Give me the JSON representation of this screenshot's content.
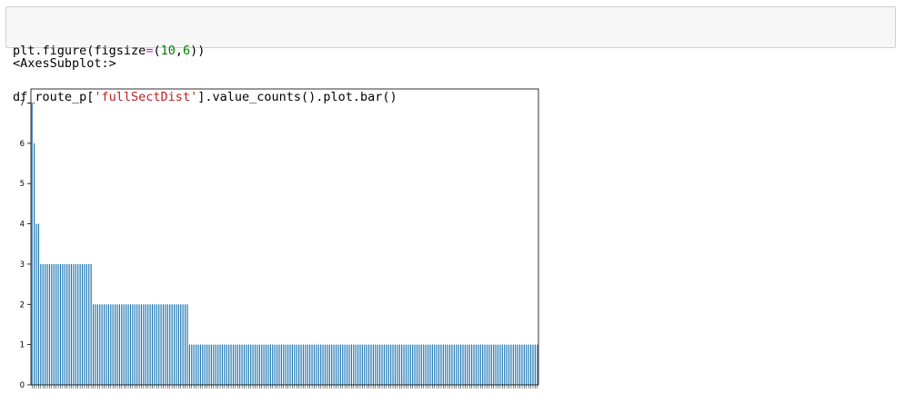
{
  "cell": {
    "line1": {
      "a": "plt.figure(figsize",
      "b": "=",
      "c": "(",
      "d": "10",
      "e": ",",
      "f": "6",
      "g": "))"
    },
    "line2": {
      "a": "df_route_p[",
      "b": "'fullSectDist'",
      "c": "].value_counts().plot.bar()"
    }
  },
  "output": {
    "text": "<AxesSubplot:>"
  },
  "colors": {
    "bar": "#1f77b4",
    "string": "#ba2121",
    "number": "#008000",
    "operator": "#aa22ff"
  },
  "chart_data": {
    "type": "bar",
    "title": "",
    "xlabel": "",
    "ylabel": "",
    "ylim": [
      0,
      7.35
    ],
    "yticks": [
      0,
      1,
      2,
      3,
      4,
      5,
      6,
      7
    ],
    "grid": false,
    "legend": "none",
    "values": [
      7,
      6,
      4,
      4,
      3,
      3,
      3,
      3,
      3,
      3,
      3,
      3,
      3,
      3,
      3,
      3,
      3,
      3,
      3,
      3,
      3,
      3,
      3,
      3,
      3,
      3,
      3,
      3,
      2,
      2,
      2,
      2,
      2,
      2,
      2,
      2,
      2,
      2,
      2,
      2,
      2,
      2,
      2,
      2,
      2,
      2,
      2,
      2,
      2,
      2,
      2,
      2,
      2,
      2,
      2,
      2,
      2,
      2,
      2,
      2,
      2,
      2,
      2,
      2,
      2,
      2,
      2,
      2,
      2,
      2,
      2,
      2,
      1,
      1,
      1,
      1,
      1,
      1,
      1,
      1,
      1,
      1,
      1,
      1,
      1,
      1,
      1,
      1,
      1,
      1,
      1,
      1,
      1,
      1,
      1,
      1,
      1,
      1,
      1,
      1,
      1,
      1,
      1,
      1,
      1,
      1,
      1,
      1,
      1,
      1,
      1,
      1,
      1,
      1,
      1,
      1,
      1,
      1,
      1,
      1,
      1,
      1,
      1,
      1,
      1,
      1,
      1,
      1,
      1,
      1,
      1,
      1,
      1,
      1,
      1,
      1,
      1,
      1,
      1,
      1,
      1,
      1,
      1,
      1,
      1,
      1,
      1,
      1,
      1,
      1,
      1,
      1,
      1,
      1,
      1,
      1,
      1,
      1,
      1,
      1,
      1,
      1,
      1,
      1,
      1,
      1,
      1,
      1,
      1,
      1,
      1,
      1,
      1,
      1,
      1,
      1,
      1,
      1,
      1,
      1,
      1,
      1,
      1,
      1,
      1,
      1,
      1,
      1,
      1,
      1,
      1,
      1,
      1,
      1,
      1,
      1,
      1,
      1,
      1,
      1,
      1,
      1,
      1,
      1,
      1,
      1,
      1,
      1,
      1,
      1,
      1,
      1,
      1,
      1,
      1,
      1,
      1,
      1,
      1,
      1,
      1,
      1,
      1,
      1,
      1,
      1,
      1,
      1,
      1,
      1,
      1,
      1
    ]
  }
}
